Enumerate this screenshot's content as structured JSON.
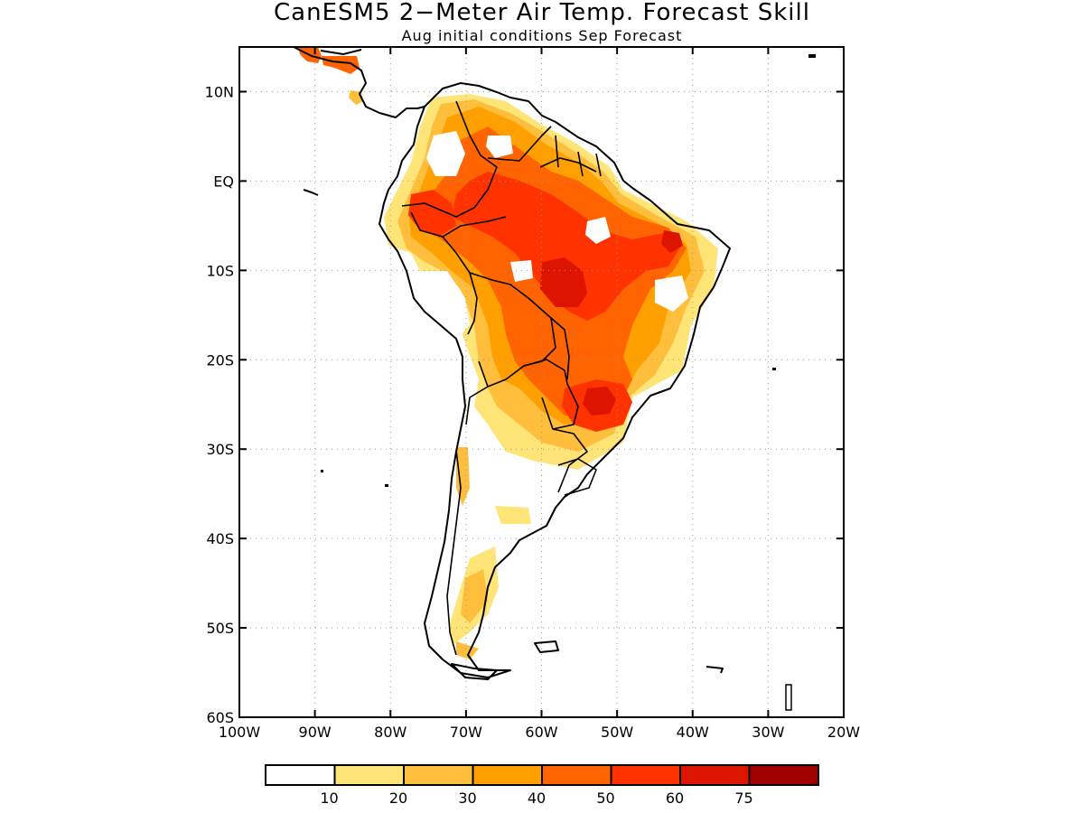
{
  "title": "CanESM5 2−Meter Air Temp. Forecast Skill",
  "subtitle": "Aug initial conditions  Sep Forecast",
  "map": {
    "lon_range": [
      -100,
      -20
    ],
    "lat_range": [
      -60,
      15
    ],
    "lat_ticks": [
      {
        "value": 10,
        "label": "10N"
      },
      {
        "value": 0,
        "label": "EQ"
      },
      {
        "value": -10,
        "label": "10S"
      },
      {
        "value": -20,
        "label": "20S"
      },
      {
        "value": -30,
        "label": "30S"
      },
      {
        "value": -40,
        "label": "40S"
      },
      {
        "value": -50,
        "label": "50S"
      },
      {
        "value": -60,
        "label": "60S"
      }
    ],
    "lon_ticks": [
      {
        "value": -100,
        "label": "100W"
      },
      {
        "value": -90,
        "label": "90W"
      },
      {
        "value": -80,
        "label": "80W"
      },
      {
        "value": -70,
        "label": "70W"
      },
      {
        "value": -60,
        "label": "60W"
      },
      {
        "value": -50,
        "label": "50W"
      },
      {
        "value": -40,
        "label": "40W"
      },
      {
        "value": -30,
        "label": "30W"
      },
      {
        "value": -20,
        "label": "20W"
      }
    ],
    "gridlines": "dotted"
  },
  "colorbar": {
    "colors": [
      "#ffffff",
      "#ffe478",
      "#ffbe3c",
      "#ffa000",
      "#ff6400",
      "#ff3200",
      "#dc1400",
      "#a00000"
    ],
    "labels": [
      "10",
      "20",
      "30",
      "40",
      "50",
      "60",
      "75"
    ]
  }
}
